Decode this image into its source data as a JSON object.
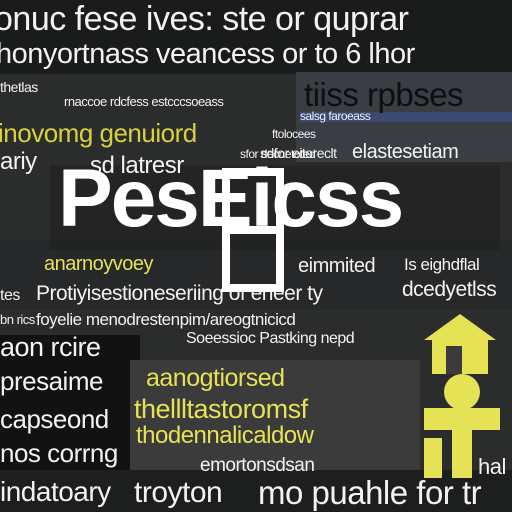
{
  "colors": {
    "background": "#2b2c2c",
    "text_white": "#f2f2ef",
    "text_yellow": "#d9d03e",
    "text_black": "#0e0e0e",
    "highlight_yellow": "#e5e256"
  },
  "title": "PesEicss",
  "texts": [
    "onuc fese ives: ste or quprar",
    "honyortnass veancess or to 6 lhor",
    "thetlas",
    "rnaccoe rdcfess estcccsoeass",
    "tiiss rpbses",
    "inovomg genuiord",
    "salsg faroeass",
    "ftolocees",
    "sfor decnetoted",
    "ariy",
    "sd latresr",
    "sdfor eitoreclt",
    "elastesetiam",
    "anarnoyvoey",
    "eimmited",
    "Is eighdflal",
    "tes",
    "Protiyisestioneseriing of eheer ty",
    "dcedyetlss",
    "foyelie menodrestenpim/areogtnicicd",
    "bn rics",
    "aon rcire",
    "Soeessioc Pastking nepd",
    "presaime",
    "aanogtiorsed",
    "thellltastoromsf",
    "capseond",
    "thodennalicaldow",
    "nos corrng",
    "emortonsdsan",
    "hal",
    "indatoary",
    "troyton",
    "mo puahle for tr"
  ],
  "icons": [
    "house-icon",
    "bulb-icon"
  ]
}
